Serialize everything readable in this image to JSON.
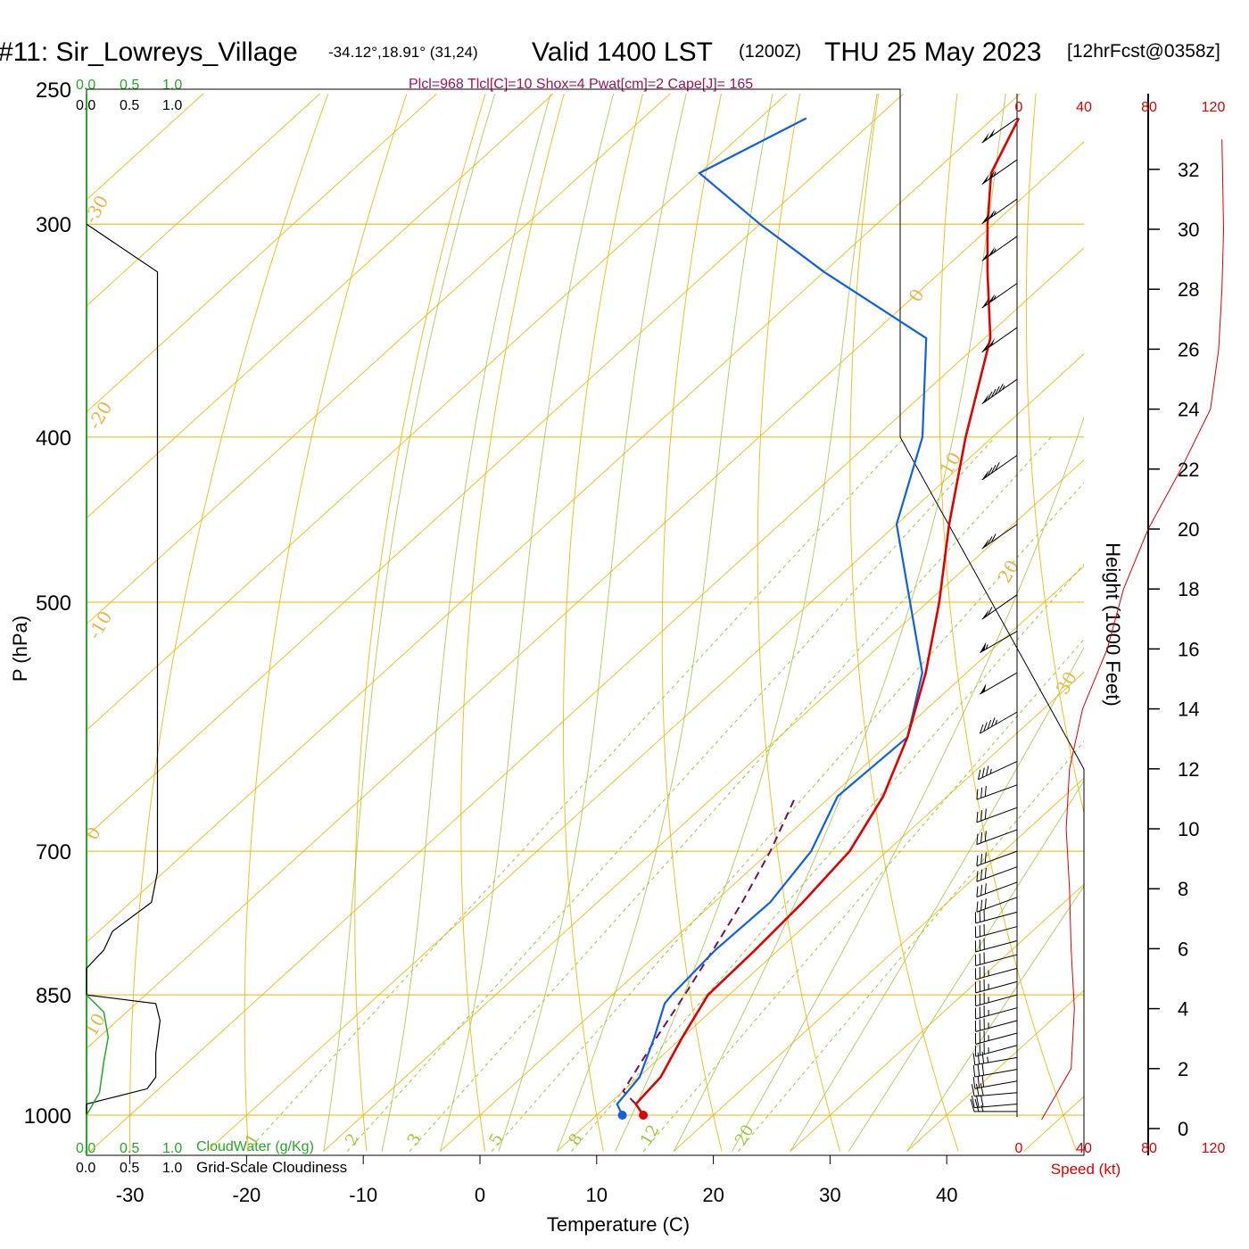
{
  "header": {
    "station": "#11: Sir_Lowreys_Village",
    "coords": "-34.12°,18.91° (31,24)",
    "valid": "Valid 1400 LST",
    "utc": "(1200Z)",
    "date": "THU 25 May 2023",
    "forecast": "[12hrFcst@0358z]",
    "params": "Plcl=968 Tlcl[C]=10 Shox=4 Pwat[cm]=2 Cape[J]= 165"
  },
  "left_panel": {
    "top_green": [
      "0.0",
      "0.5",
      "1.0"
    ],
    "top_black": [
      "0.0",
      "0.5",
      "1.0"
    ],
    "bottom_green": [
      "0.0",
      "0.5",
      "1.0"
    ],
    "bottom_black": [
      "0.0",
      "0.5",
      "1.0"
    ],
    "cloudwater_label": "CloudWater (g/Kg)",
    "cloudiness_label": "Grid-Scale Cloudiness"
  },
  "speed_axis": {
    "ticks": [
      "0",
      "40",
      "80",
      "120"
    ],
    "label": "Speed (kt)"
  },
  "colors": {
    "isotherm": "#f0b400",
    "mixing": "#9cc83c",
    "temperature": "#e00000",
    "dewpoint": "#1060e0",
    "parcel": "#7a1050",
    "cloudwater": "#22aa22",
    "wind_speed": "#e00000"
  },
  "chart_data": {
    "type": "skew-t",
    "xlabel": "Temperature (C)",
    "ylabel": "P (hPa)",
    "y2label": "Height (1000 Feet)",
    "x_ticks": [
      -30,
      -20,
      -10,
      0,
      10,
      20,
      30,
      40
    ],
    "p_ticks": [
      1000,
      850,
      700,
      500,
      400,
      300,
      250
    ],
    "height_ticks": [
      0,
      2,
      4,
      6,
      8,
      10,
      12,
      14,
      16,
      18,
      20,
      22,
      24,
      26,
      28,
      30,
      32
    ],
    "isotherm_labels": [
      "-30",
      "-20",
      "-10",
      "0",
      "10",
      "0",
      "10",
      "20",
      "30"
    ],
    "mixing_ratio_labels": [
      "1",
      "2",
      "3",
      "5",
      "8",
      "12",
      "20"
    ],
    "temperature": [
      {
        "p": 1000,
        "t": 14.0
      },
      {
        "p": 985,
        "t": 12.3
      },
      {
        "p": 950,
        "t": 11.9
      },
      {
        "p": 900,
        "t": 10.0
      },
      {
        "p": 850,
        "t": 8.2
      },
      {
        "p": 800,
        "t": 8.0
      },
      {
        "p": 750,
        "t": 7.6
      },
      {
        "p": 700,
        "t": 6.8
      },
      {
        "p": 650,
        "t": 4.5
      },
      {
        "p": 600,
        "t": 1.0
      },
      {
        "p": 550,
        "t": -3.5
      },
      {
        "p": 500,
        "t": -9.0
      },
      {
        "p": 450,
        "t": -15.5
      },
      {
        "p": 400,
        "t": -22.3
      },
      {
        "p": 350,
        "t": -29.5
      },
      {
        "p": 320,
        "t": -36.0
      },
      {
        "p": 300,
        "t": -40.5
      },
      {
        "p": 280,
        "t": -45.0
      },
      {
        "p": 260,
        "t": -47.8
      }
    ],
    "dewpoint": [
      {
        "p": 1000,
        "t": 12.2
      },
      {
        "p": 985,
        "t": 10.7
      },
      {
        "p": 950,
        "t": 10.1
      },
      {
        "p": 900,
        "t": 7.6
      },
      {
        "p": 860,
        "t": 5.3
      },
      {
        "p": 850,
        "t": 5.1
      },
      {
        "p": 800,
        "t": 4.6
      },
      {
        "p": 750,
        "t": 4.8
      },
      {
        "p": 700,
        "t": 3.5
      },
      {
        "p": 650,
        "t": 0.6
      },
      {
        "p": 600,
        "t": 1.0
      },
      {
        "p": 550,
        "t": -3.8
      },
      {
        "p": 500,
        "t": -11.5
      },
      {
        "p": 450,
        "t": -20.0
      },
      {
        "p": 400,
        "t": -26.0
      },
      {
        "p": 350,
        "t": -35.0
      },
      {
        "p": 320,
        "t": -50.0
      },
      {
        "p": 300,
        "t": -60.0
      },
      {
        "p": 280,
        "t": -70.0
      },
      {
        "p": 260,
        "t": -66.0
      }
    ],
    "parcel": [
      {
        "p": 985,
        "t": 12.3
      },
      {
        "p": 968,
        "t": 10.0
      },
      {
        "p": 900,
        "t": 7.8
      },
      {
        "p": 850,
        "t": 6.2
      },
      {
        "p": 800,
        "t": 4.4
      },
      {
        "p": 750,
        "t": 2.4
      },
      {
        "p": 700,
        "t": 0.0
      },
      {
        "p": 650,
        "t": -3.0
      }
    ],
    "cloud_fraction": [
      {
        "p": 1000,
        "v": 0.0
      },
      {
        "p": 985,
        "v": 0.0
      },
      {
        "p": 965,
        "v": 0.7
      },
      {
        "p": 950,
        "v": 0.8
      },
      {
        "p": 920,
        "v": 0.8
      },
      {
        "p": 880,
        "v": 0.85
      },
      {
        "p": 860,
        "v": 0.8
      },
      {
        "p": 850,
        "v": 0.0
      },
      {
        "p": 820,
        "v": 0.0
      },
      {
        "p": 800,
        "v": 0.2
      },
      {
        "p": 780,
        "v": 0.3
      },
      {
        "p": 750,
        "v": 0.75
      },
      {
        "p": 720,
        "v": 0.82
      },
      {
        "p": 320,
        "v": 0.82
      },
      {
        "p": 300,
        "v": 0.0
      }
    ],
    "cloudwater": [
      {
        "p": 1000,
        "v": 0.0
      },
      {
        "p": 970,
        "v": 0.15
      },
      {
        "p": 930,
        "v": 0.2
      },
      {
        "p": 900,
        "v": 0.25
      },
      {
        "p": 870,
        "v": 0.2
      },
      {
        "p": 855,
        "v": 0.05
      },
      {
        "p": 850,
        "v": 0.0
      }
    ],
    "wind_speed": [
      {
        "h": 0.3,
        "kt": 15
      },
      {
        "h": 2,
        "kt": 33
      },
      {
        "h": 4,
        "kt": 35
      },
      {
        "h": 6,
        "kt": 33
      },
      {
        "h": 8,
        "kt": 32
      },
      {
        "h": 10,
        "kt": 30
      },
      {
        "h": 12,
        "kt": 32
      },
      {
        "h": 14,
        "kt": 40
      },
      {
        "h": 16,
        "kt": 55
      },
      {
        "h": 18,
        "kt": 65
      },
      {
        "h": 20,
        "kt": 80
      },
      {
        "h": 22,
        "kt": 100
      },
      {
        "h": 24,
        "kt": 118
      },
      {
        "h": 26,
        "kt": 123
      },
      {
        "h": 28,
        "kt": 125
      },
      {
        "h": 30,
        "kt": 126
      },
      {
        "h": 33,
        "kt": 125
      }
    ],
    "wind_barbs": [
      {
        "p": 995,
        "dir": 270,
        "kt": 25
      },
      {
        "p": 985,
        "dir": 275,
        "kt": 28
      },
      {
        "p": 970,
        "dir": 275,
        "kt": 30
      },
      {
        "p": 955,
        "dir": 280,
        "kt": 30
      },
      {
        "p": 940,
        "dir": 280,
        "kt": 32
      },
      {
        "p": 925,
        "dir": 280,
        "kt": 33
      },
      {
        "p": 910,
        "dir": 285,
        "kt": 33
      },
      {
        "p": 895,
        "dir": 285,
        "kt": 35
      },
      {
        "p": 880,
        "dir": 285,
        "kt": 35
      },
      {
        "p": 865,
        "dir": 285,
        "kt": 35
      },
      {
        "p": 850,
        "dir": 285,
        "kt": 33
      },
      {
        "p": 835,
        "dir": 285,
        "kt": 33
      },
      {
        "p": 820,
        "dir": 285,
        "kt": 33
      },
      {
        "p": 805,
        "dir": 285,
        "kt": 32
      },
      {
        "p": 790,
        "dir": 285,
        "kt": 32
      },
      {
        "p": 775,
        "dir": 285,
        "kt": 30
      },
      {
        "p": 760,
        "dir": 285,
        "kt": 30
      },
      {
        "p": 745,
        "dir": 290,
        "kt": 30
      },
      {
        "p": 730,
        "dir": 290,
        "kt": 30
      },
      {
        "p": 715,
        "dir": 290,
        "kt": 30
      },
      {
        "p": 700,
        "dir": 290,
        "kt": 30
      },
      {
        "p": 680,
        "dir": 290,
        "kt": 30
      },
      {
        "p": 660,
        "dir": 290,
        "kt": 30
      },
      {
        "p": 640,
        "dir": 290,
        "kt": 32
      },
      {
        "p": 620,
        "dir": 295,
        "kt": 35
      },
      {
        "p": 580,
        "dir": 300,
        "kt": 45
      },
      {
        "p": 550,
        "dir": 300,
        "kt": 50
      },
      {
        "p": 520,
        "dir": 300,
        "kt": 55
      },
      {
        "p": 495,
        "dir": 305,
        "kt": 60
      },
      {
        "p": 450,
        "dir": 305,
        "kt": 70
      },
      {
        "p": 410,
        "dir": 305,
        "kt": 80
      },
      {
        "p": 370,
        "dir": 305,
        "kt": 95
      },
      {
        "p": 345,
        "dir": 305,
        "kt": 100
      },
      {
        "p": 325,
        "dir": 305,
        "kt": 105
      },
      {
        "p": 305,
        "dir": 305,
        "kt": 105
      },
      {
        "p": 290,
        "dir": 305,
        "kt": 105
      },
      {
        "p": 275,
        "dir": 305,
        "kt": 105
      },
      {
        "p": 260,
        "dir": 305,
        "kt": 100
      }
    ]
  }
}
